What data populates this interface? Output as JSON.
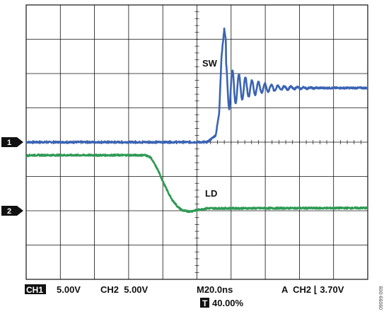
{
  "chart_data": {
    "type": "line",
    "title": "",
    "grid": true,
    "x_divisions": 10,
    "y_divisions": 8,
    "time_per_div_ns": 20,
    "trigger_position_percent": 40,
    "series": [
      {
        "name": "SW",
        "channel": 1,
        "color": "#3a63b4",
        "marker": "1",
        "ground_div": 4.0,
        "x_div": [
          0,
          5.3,
          5.55,
          5.65,
          5.72,
          5.8,
          5.9,
          6.0,
          6.15,
          6.3,
          6.6,
          7.0,
          7.5,
          10
        ],
        "y_div": [
          4.0,
          4.0,
          4.2,
          4.85,
          6.5,
          7.3,
          6.6,
          5.1,
          6.5,
          5.85,
          5.6,
          5.65,
          5.58,
          5.58
        ],
        "ringing": {
          "start_div": 5.85,
          "end_div": 8.5,
          "amplitude_div": 0.7,
          "period_div": 0.19,
          "center_div": 5.58
        }
      },
      {
        "name": "LD",
        "channel": 2,
        "color": "#2e9a55",
        "marker": "2",
        "ground_div": 2.0,
        "x_div": [
          0,
          0.1,
          3.5,
          3.65,
          3.85,
          4.05,
          4.25,
          4.45,
          4.6,
          4.8,
          5.0,
          5.3,
          10
        ],
        "y_div": [
          3.6,
          3.62,
          3.62,
          3.55,
          3.2,
          2.75,
          2.35,
          2.1,
          2.0,
          1.98,
          2.02,
          2.07,
          2.08
        ]
      }
    ],
    "readouts": {
      "ch1_badge": "CH1",
      "ch1_scale": "5.00V",
      "ch2_scale": "CH2  5.00V",
      "timebase": "M20.0ns",
      "trigger": "A  CH2 ⌊ 3.70V",
      "trigger_pos_badge": "T",
      "trigger_pos": "40.00%"
    },
    "side_id": "09099-009"
  }
}
